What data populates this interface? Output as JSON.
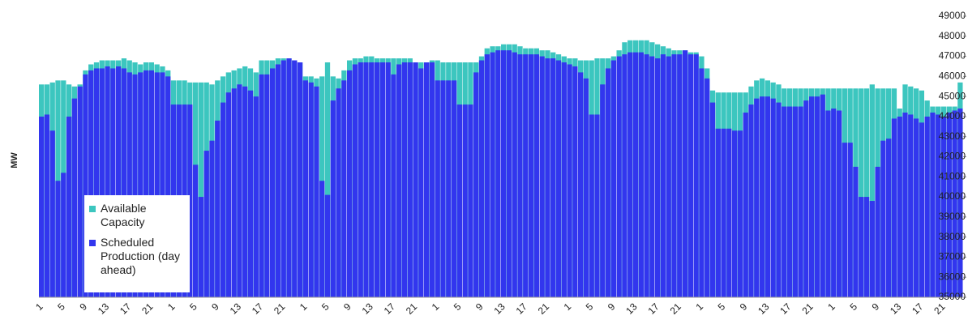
{
  "chart_data": {
    "type": "bar",
    "y_label": "MW",
    "categories": [
      "1",
      null,
      null,
      null,
      "5",
      null,
      null,
      null,
      "9",
      null,
      null,
      null,
      "13",
      null,
      null,
      null,
      "17",
      null,
      null,
      null,
      "21",
      null,
      null,
      null,
      "1",
      null,
      null,
      null,
      "5",
      null,
      null,
      null,
      "9",
      null,
      null,
      null,
      "13",
      null,
      null,
      null,
      "17",
      null,
      null,
      null,
      "21",
      null,
      null,
      null,
      "1",
      null,
      null,
      null,
      "5",
      null,
      null,
      null,
      "9",
      null,
      null,
      null,
      "13",
      null,
      null,
      null,
      "17",
      null,
      null,
      null,
      "21",
      null,
      null,
      null,
      "1",
      null,
      null,
      null,
      "5",
      null,
      null,
      null,
      "9",
      null,
      null,
      null,
      "13",
      null,
      null,
      null,
      "17",
      null,
      null,
      null,
      "21",
      null,
      null,
      null,
      "1",
      null,
      null,
      null,
      "5",
      null,
      null,
      null,
      "9",
      null,
      null,
      null,
      "13",
      null,
      null,
      null,
      "17",
      null,
      null,
      null,
      "21",
      null,
      null,
      null,
      "1",
      null,
      null,
      null,
      "5",
      null,
      null,
      null,
      "9",
      null,
      null,
      null,
      "13",
      null,
      null,
      null,
      "17",
      null,
      null,
      null,
      "21",
      null,
      null,
      null,
      "1",
      null,
      null,
      null,
      "5",
      null,
      null,
      null,
      "9",
      null,
      null,
      null,
      "13",
      null,
      null,
      null,
      "17",
      null,
      null,
      null,
      "21",
      null,
      null,
      null
    ],
    "series": [
      {
        "name": "Available Capacity",
        "color": "#3cc6bf",
        "values": [
          45600,
          45600,
          45700,
          45800,
          45800,
          45600,
          45500,
          45600,
          46300,
          46600,
          46700,
          46800,
          46800,
          46800,
          46800,
          46900,
          46800,
          46700,
          46600,
          46700,
          46700,
          46600,
          46500,
          46300,
          45800,
          45800,
          45800,
          45700,
          45700,
          45700,
          45700,
          45600,
          45800,
          46000,
          46200,
          46300,
          46400,
          46500,
          46400,
          46200,
          46800,
          46800,
          46800,
          46900,
          46900,
          46900,
          46800,
          46700,
          46000,
          46000,
          45900,
          46000,
          46700,
          46000,
          45900,
          46300,
          46800,
          46900,
          46900,
          47000,
          47000,
          46900,
          46900,
          46900,
          46900,
          46900,
          46900,
          46900,
          46700,
          46700,
          46700,
          46800,
          46800,
          46700,
          46700,
          46700,
          46700,
          46700,
          46700,
          46700,
          47000,
          47400,
          47500,
          47500,
          47600,
          47600,
          47600,
          47500,
          47400,
          47400,
          47400,
          47300,
          47300,
          47200,
          47100,
          47000,
          46900,
          46900,
          46800,
          46800,
          46800,
          46900,
          46900,
          46900,
          47000,
          47300,
          47700,
          47800,
          47800,
          47800,
          47800,
          47700,
          47600,
          47500,
          47400,
          47300,
          47300,
          47300,
          47200,
          47200,
          47000,
          46400,
          45300,
          45200,
          45200,
          45200,
          45200,
          45200,
          45200,
          45500,
          45800,
          45900,
          45800,
          45700,
          45600,
          45400,
          45400,
          45400,
          45400,
          45400,
          45400,
          45400,
          45400,
          45400,
          45400,
          45400,
          45400,
          45400,
          45400,
          45400,
          45400,
          45600,
          45400,
          45400,
          45400,
          45400,
          44400,
          45600,
          45500,
          45400,
          45300,
          44800,
          44500,
          44500,
          44500,
          44500,
          44500,
          45700
        ]
      },
      {
        "name": "Scheduled Production (day ahead)",
        "color": "#3236ee",
        "values": [
          44000,
          44100,
          43300,
          40800,
          41200,
          44000,
          44900,
          45500,
          46100,
          46300,
          46400,
          46400,
          46500,
          46400,
          46500,
          46400,
          46200,
          46100,
          46200,
          46300,
          46300,
          46200,
          46200,
          46000,
          44600,
          44600,
          44600,
          44600,
          41600,
          40000,
          42300,
          42800,
          43800,
          44700,
          45200,
          45400,
          45600,
          45500,
          45300,
          45000,
          46100,
          46100,
          46400,
          46600,
          46800,
          46900,
          46800,
          46700,
          45800,
          45700,
          45500,
          40800,
          40100,
          44800,
          45400,
          45800,
          46300,
          46600,
          46700,
          46700,
          46700,
          46700,
          46700,
          46700,
          46100,
          46600,
          46700,
          46700,
          46700,
          46400,
          46700,
          46700,
          45800,
          45800,
          45800,
          45800,
          44600,
          44600,
          44600,
          46200,
          46800,
          47100,
          47200,
          47300,
          47300,
          47300,
          47200,
          47100,
          47100,
          47100,
          47100,
          47000,
          46900,
          46900,
          46800,
          46700,
          46600,
          46500,
          46200,
          45900,
          44100,
          44100,
          45600,
          46400,
          46800,
          47000,
          47100,
          47200,
          47200,
          47200,
          47100,
          47000,
          46900,
          47100,
          47000,
          47100,
          47100,
          47300,
          47100,
          47100,
          46400,
          45900,
          44700,
          43400,
          43400,
          43400,
          43300,
          43300,
          44200,
          44600,
          44900,
          45000,
          45000,
          44900,
          44700,
          44500,
          44500,
          44500,
          44500,
          44800,
          45000,
          45000,
          45100,
          44300,
          44400,
          44300,
          42700,
          42700,
          41500,
          40000,
          40000,
          39800,
          41500,
          42800,
          42900,
          43900,
          44000,
          44200,
          44100,
          43900,
          43700,
          44000,
          44200,
          44100,
          44000,
          44200,
          44300,
          44400
        ]
      }
    ],
    "ylim": [
      35000,
      49000
    ],
    "yticks": [
      35000,
      36000,
      37000,
      38000,
      39000,
      40000,
      41000,
      42000,
      43000,
      44000,
      45000,
      46000,
      47000,
      48000,
      49000
    ],
    "legend": "bottom-left",
    "grid": false
  }
}
